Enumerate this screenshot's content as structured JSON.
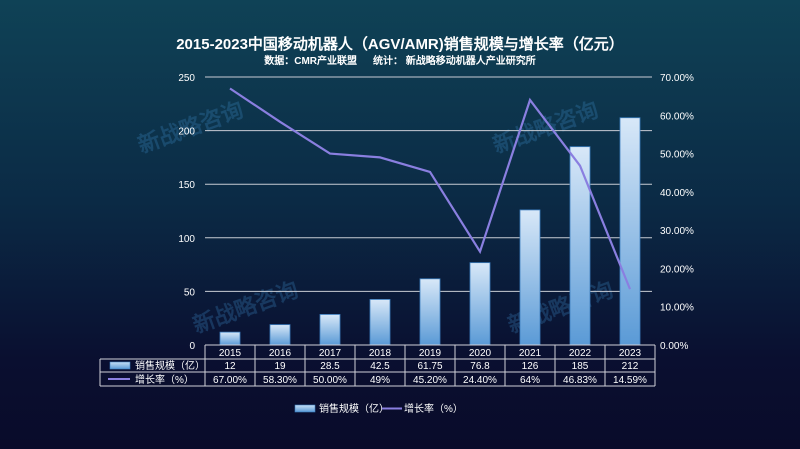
{
  "chart_data": {
    "type": "bar+line",
    "title": "2015-2023中国移动机器人（AGV/AMR)销售规模与增长率（亿元）",
    "subtitle": [
      "数据：CMR产业联盟",
      "统计： 新战略移动机器人产业研究所"
    ],
    "categories": [
      "2015",
      "2016",
      "2017",
      "2018",
      "2019",
      "2020",
      "2021",
      "2022",
      "2023"
    ],
    "series": [
      {
        "name": "销售规模（亿）",
        "type": "bar",
        "axis": "left",
        "values": [
          12,
          19,
          28.5,
          42.5,
          61.75,
          76.8,
          126,
          185,
          212
        ],
        "labels": [
          "12",
          "19",
          "28.5",
          "42.5",
          "61.75",
          "76.8",
          "126",
          "185",
          "212"
        ],
        "color": "#9cc8ee"
      },
      {
        "name": "增长率（%）",
        "type": "line",
        "axis": "right",
        "values": [
          67.0,
          58.3,
          50.0,
          49,
          45.2,
          24.4,
          64,
          46.83,
          14.59
        ],
        "labels": [
          "67.00%",
          "58.30%",
          "50.00%",
          "49%",
          "45.20%",
          "24.40%",
          "64%",
          "46.83%",
          "14.59%"
        ],
        "color": "#8a7fe0"
      }
    ],
    "yleft": {
      "ylim": [
        0,
        250
      ],
      "ticks": [
        "0",
        "50",
        "100",
        "150",
        "200",
        "250"
      ]
    },
    "yright": {
      "ylim": [
        0,
        70
      ],
      "ticks": [
        "0.00%",
        "10.00%",
        "20.00%",
        "30.00%",
        "40.00%",
        "50.00%",
        "60.00%",
        "70.00%"
      ]
    },
    "grid": true,
    "legend": "bottom",
    "data_table": true
  },
  "watermark": "新战略咨询"
}
